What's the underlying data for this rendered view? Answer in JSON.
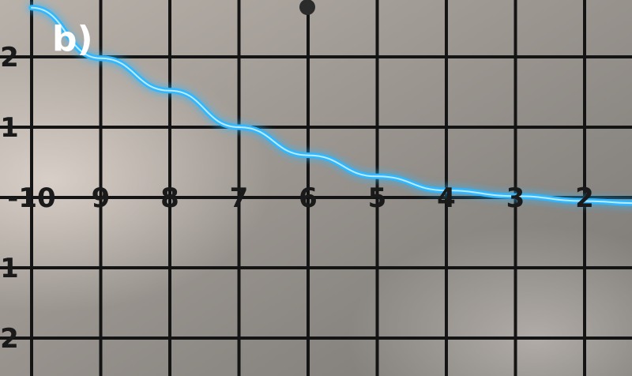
{
  "panel_label": "b)",
  "x_tick_labels": [
    "-10",
    "9",
    "8",
    "7",
    "6",
    "5",
    "4",
    "3",
    "2"
  ],
  "y_tick_labels": [
    "2",
    "1",
    "1",
    "2"
  ],
  "curve_color": "#2fb8ff",
  "chart_data": {
    "type": "line",
    "title": "",
    "xlabel": "",
    "ylabel": "",
    "xlim": [
      -10.2,
      -1.3
    ],
    "ylim": [
      -2.1,
      2.7
    ],
    "grid": true,
    "series": [
      {
        "x": [
          -10,
          -9,
          -8,
          -7,
          -6,
          -5,
          -4,
          -3,
          -2,
          -1.3
        ],
        "y": [
          2.7,
          1.98,
          1.52,
          1.0,
          0.6,
          0.3,
          0.1,
          0.02,
          -0.05,
          -0.08
        ]
      }
    ]
  }
}
